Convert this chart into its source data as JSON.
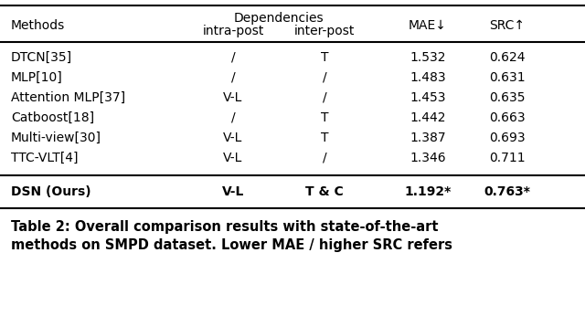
{
  "title_line1": "Table 2: Overall comparison results with state-of-the-art",
  "title_line2": "methods on SMPD dataset. Lower MAE / higher SRC refers",
  "dep_header": "Dependencies",
  "col_headers": [
    "Methods",
    "intra-post",
    "inter-post",
    "MAE↓",
    "SRC↑"
  ],
  "rows": [
    [
      "DTCN[35]",
      "/",
      "T",
      "1.532",
      "0.624",
      false
    ],
    [
      "MLP[10]",
      "/",
      "/",
      "1.483",
      "0.631",
      false
    ],
    [
      "Attention MLP[37]",
      "V-L",
      "/",
      "1.453",
      "0.635",
      false
    ],
    [
      "Catboost[18]",
      "/",
      "T",
      "1.442",
      "0.663",
      false
    ],
    [
      "Multi-view[30]",
      "V-L",
      "T",
      "1.387",
      "0.693",
      false
    ],
    [
      "TTC-VLT[4]",
      "V-L",
      "/",
      "1.346",
      "0.711",
      false
    ],
    [
      "DSN (Ours)",
      "V-L",
      "T & C",
      "1.192*",
      "0.763*",
      true
    ]
  ],
  "bg_color": "#ffffff",
  "text_color": "#000000",
  "fs": 10.0,
  "caption_fs": 10.5
}
